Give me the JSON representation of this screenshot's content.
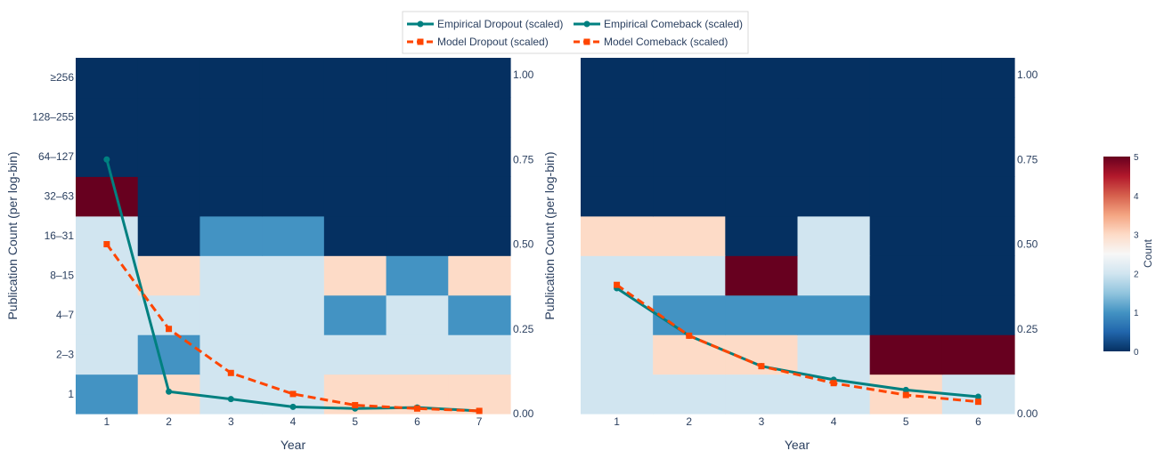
{
  "chart_data": {
    "type": "heatmap",
    "legend": {
      "entries": [
        {
          "name": "Empirical Dropout (scaled)",
          "style": "solid-circle",
          "color": "#008080"
        },
        {
          "name": "Empirical Comeback (scaled)",
          "style": "solid-circle",
          "color": "#008080"
        },
        {
          "name": "Model Dropout (scaled)",
          "style": "dashed-square",
          "color": "#ff4500"
        },
        {
          "name": "Model Comeback (scaled)",
          "style": "dashed-square",
          "color": "#ff4500"
        }
      ]
    },
    "colorbar": {
      "title": "Count",
      "range": [
        0,
        5
      ],
      "ticks": [
        "0",
        "1",
        "2",
        "3",
        "4",
        "5"
      ],
      "colorscale": [
        "#053061",
        "#2166ac",
        "#4393c3",
        "#92c5de",
        "#d1e5f0",
        "#f7f7f7",
        "#fddbc7",
        "#f4a582",
        "#d6604d",
        "#b2182b",
        "#67001f"
      ]
    },
    "panels": [
      {
        "name": "dropout",
        "xlabel": "Year",
        "ylabel": "Publication Count (per log-bin)",
        "x_ticks": [
          "1",
          "2",
          "3",
          "4",
          "5",
          "6",
          "7"
        ],
        "y_categories": [
          "1",
          "2–3",
          "4–7",
          "8–15",
          "16–31",
          "32–63",
          "64–127",
          "128–255",
          "≥256"
        ],
        "y2_ticks": [
          "0.00",
          "0.25",
          "0.50",
          "0.75",
          "1.00"
        ],
        "y2_range": [
          0,
          1.05
        ],
        "z": [
          [
            1,
            3,
            2,
            2,
            3,
            3,
            3
          ],
          [
            2,
            1,
            2,
            2,
            2,
            2,
            2
          ],
          [
            2,
            2,
            2,
            2,
            1,
            2,
            1
          ],
          [
            2,
            3,
            2,
            2,
            3,
            1,
            3
          ],
          [
            2,
            0,
            1,
            1,
            0,
            0,
            0
          ],
          [
            5,
            0,
            0,
            0,
            0,
            0,
            0
          ],
          [
            0,
            0,
            0,
            0,
            0,
            0,
            0
          ],
          [
            0,
            0,
            0,
            0,
            0,
            0,
            0
          ],
          [
            0,
            0,
            0,
            0,
            0,
            0,
            0
          ]
        ],
        "series": [
          {
            "name": "Empirical Dropout (scaled)",
            "x": [
              1,
              2,
              3,
              4,
              5,
              6,
              7
            ],
            "values": [
              0.75,
              0.065,
              0.043,
              0.02,
              0.015,
              0.018,
              0.008
            ]
          },
          {
            "name": "Model Dropout (scaled)",
            "x": [
              1,
              2,
              3,
              4,
              5,
              6,
              7
            ],
            "values": [
              0.5,
              0.25,
              0.12,
              0.058,
              0.025,
              0.015,
              0.008
            ]
          }
        ]
      },
      {
        "name": "comeback",
        "xlabel": "Year",
        "ylabel": "Publication Count (per log-bin)",
        "x_ticks": [
          "1",
          "2",
          "3",
          "4",
          "5",
          "6"
        ],
        "y2_ticks": [
          "0.00",
          "0.25",
          "0.50",
          "0.75",
          "1.00"
        ],
        "y2_range": [
          0,
          1.05
        ],
        "z": [
          [
            2,
            2,
            2,
            2,
            3,
            2
          ],
          [
            2,
            3,
            3,
            2,
            5,
            5
          ],
          [
            2,
            1,
            1,
            1,
            0,
            0
          ],
          [
            2,
            2,
            5,
            2,
            0,
            0
          ],
          [
            3,
            3,
            0,
            2,
            0,
            0
          ],
          [
            0,
            0,
            0,
            0,
            0,
            0
          ],
          [
            0,
            0,
            0,
            0,
            0,
            0
          ],
          [
            0,
            0,
            0,
            0,
            0,
            0
          ],
          [
            0,
            0,
            0,
            0,
            0,
            0
          ]
        ],
        "series": [
          {
            "name": "Empirical Comeback (scaled)",
            "x": [
              1,
              2,
              3,
              4,
              5,
              6
            ],
            "values": [
              0.37,
              0.23,
              0.14,
              0.1,
              0.07,
              0.05
            ]
          },
          {
            "name": "Model Comeback (scaled)",
            "x": [
              1,
              2,
              3,
              4,
              5,
              6
            ],
            "values": [
              0.38,
              0.23,
              0.14,
              0.09,
              0.055,
              0.035
            ]
          }
        ]
      }
    ]
  }
}
